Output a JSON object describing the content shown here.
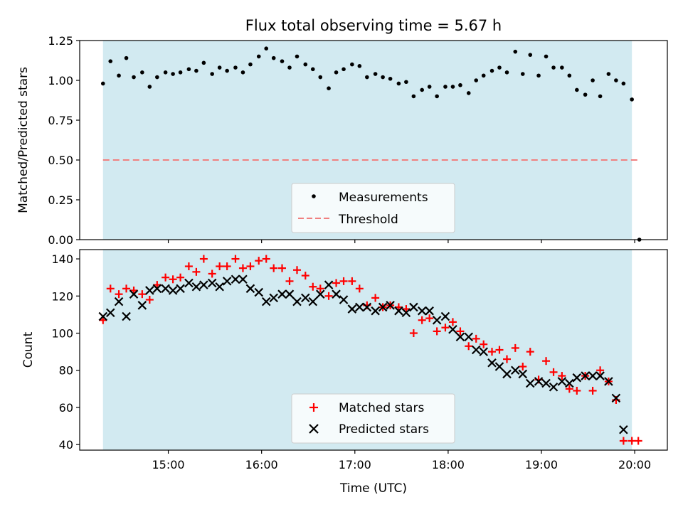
{
  "chart_data": {
    "title": "Flux total observing time = 5.67 h",
    "xlabel": "Time (UTC)",
    "x_unit": "hours UTC",
    "xlim": [
      14.05,
      20.35
    ],
    "xticks": [
      15,
      16,
      17,
      18,
      19,
      20
    ],
    "xtick_labels": [
      "15:00",
      "16:00",
      "17:00",
      "18:00",
      "19:00",
      "20:00"
    ],
    "observing_window": [
      14.3,
      19.97
    ],
    "window_color": "#add8e6",
    "panels": [
      {
        "type": "scatter",
        "ylabel": "Matched/Predicted stars",
        "ylim": [
          0,
          1.25
        ],
        "yticks": [
          0,
          0.25,
          0.5,
          0.75,
          1.0,
          1.25
        ],
        "ytick_labels": [
          "0.00",
          "0.25",
          "0.50",
          "0.75",
          "1.00",
          "1.25"
        ],
        "legend_position": "lower-center",
        "series": [
          {
            "name": "Measurements",
            "marker": "dot",
            "color": "#000000",
            "x": [
              14.3,
              14.38,
              14.47,
              14.55,
              14.63,
              14.72,
              14.8,
              14.88,
              14.97,
              15.05,
              15.13,
              15.22,
              15.3,
              15.38,
              15.47,
              15.55,
              15.63,
              15.72,
              15.8,
              15.88,
              15.97,
              16.05,
              16.13,
              16.22,
              16.3,
              16.38,
              16.47,
              16.55,
              16.63,
              16.72,
              16.8,
              16.88,
              16.97,
              17.05,
              17.13,
              17.22,
              17.3,
              17.38,
              17.47,
              17.55,
              17.63,
              17.72,
              17.8,
              17.88,
              17.97,
              18.05,
              18.13,
              18.22,
              18.3,
              18.38,
              18.47,
              18.55,
              18.63,
              18.72,
              18.8,
              18.88,
              18.97,
              19.05,
              19.13,
              19.22,
              19.3,
              19.38,
              19.47,
              19.55,
              19.63,
              19.72,
              19.8,
              19.88,
              19.97,
              20.05
            ],
            "y": [
              0.98,
              1.12,
              1.03,
              1.14,
              1.02,
              1.05,
              0.96,
              1.02,
              1.05,
              1.04,
              1.05,
              1.07,
              1.06,
              1.11,
              1.04,
              1.08,
              1.06,
              1.08,
              1.05,
              1.1,
              1.15,
              1.2,
              1.14,
              1.12,
              1.08,
              1.15,
              1.1,
              1.07,
              1.02,
              0.95,
              1.05,
              1.07,
              1.1,
              1.09,
              1.02,
              1.04,
              1.02,
              1.01,
              0.98,
              0.99,
              0.9,
              0.94,
              0.96,
              0.9,
              0.96,
              0.96,
              0.97,
              0.92,
              1.0,
              1.03,
              1.06,
              1.08,
              1.05,
              1.18,
              1.04,
              1.16,
              1.03,
              1.15,
              1.08,
              1.08,
              1.03,
              0.94,
              0.91,
              1.0,
              0.9,
              1.04,
              1.0,
              0.98,
              0.88,
              0.0
            ]
          },
          {
            "name": "Threshold",
            "marker": "dashed-line",
            "color": "#f08080",
            "x": [
              14.3,
              20.05
            ],
            "y": [
              0.5,
              0.5
            ]
          }
        ]
      },
      {
        "type": "scatter",
        "ylabel": "Count",
        "ylim": [
          37,
          145
        ],
        "yticks": [
          40,
          60,
          80,
          100,
          120,
          140
        ],
        "ytick_labels": [
          "40",
          "60",
          "80",
          "100",
          "120",
          "140"
        ],
        "legend_position": "lower-center",
        "series": [
          {
            "name": "Matched stars",
            "marker": "plus",
            "color": "#ff0000",
            "x": [
              14.3,
              14.38,
              14.47,
              14.55,
              14.63,
              14.72,
              14.8,
              14.88,
              14.97,
              15.05,
              15.13,
              15.22,
              15.3,
              15.38,
              15.47,
              15.55,
              15.63,
              15.72,
              15.8,
              15.88,
              15.97,
              16.05,
              16.13,
              16.22,
              16.3,
              16.38,
              16.47,
              16.55,
              16.63,
              16.72,
              16.8,
              16.88,
              16.97,
              17.05,
              17.13,
              17.22,
              17.3,
              17.38,
              17.47,
              17.55,
              17.63,
              17.72,
              17.8,
              17.88,
              17.97,
              18.05,
              18.13,
              18.22,
              18.3,
              18.38,
              18.47,
              18.55,
              18.63,
              18.72,
              18.8,
              18.88,
              18.97,
              19.05,
              19.13,
              19.22,
              19.3,
              19.38,
              19.47,
              19.55,
              19.63,
              19.72,
              19.8,
              19.88,
              19.97,
              20.05
            ],
            "y": [
              107,
              124,
              121,
              124,
              123,
              121,
              118,
              126,
              130,
              129,
              130,
              136,
              133,
              140,
              132,
              136,
              136,
              140,
              135,
              136,
              139,
              140,
              135,
              135,
              128,
              134,
              131,
              125,
              124,
              120,
              127,
              128,
              128,
              124,
              115,
              119,
              114,
              115,
              114,
              113,
              100,
              107,
              108,
              101,
              103,
              106,
              101,
              93,
              97,
              94,
              90,
              91,
              86,
              92,
              82,
              90,
              75,
              85,
              79,
              77,
              70,
              69,
              77,
              69,
              80,
              74,
              64,
              42,
              42,
              null
            ],
            "note_last_valid_index": 68
          },
          {
            "name": "Predicted stars",
            "marker": "x",
            "color": "#000000",
            "x": [
              14.3,
              14.38,
              14.47,
              14.55,
              14.63,
              14.72,
              14.8,
              14.88,
              14.97,
              15.05,
              15.13,
              15.22,
              15.3,
              15.38,
              15.47,
              15.55,
              15.63,
              15.72,
              15.8,
              15.88,
              15.97,
              16.05,
              16.13,
              16.22,
              16.3,
              16.38,
              16.47,
              16.55,
              16.63,
              16.72,
              16.8,
              16.88,
              16.97,
              17.05,
              17.13,
              17.22,
              17.3,
              17.38,
              17.47,
              17.55,
              17.63,
              17.72,
              17.8,
              17.88,
              17.97,
              18.05,
              18.13,
              18.22,
              18.3,
              18.38,
              18.47,
              18.55,
              18.63,
              18.72,
              18.8,
              18.88,
              18.97,
              19.05,
              19.13,
              19.22,
              19.3,
              19.38,
              19.47,
              19.55,
              19.63,
              19.72,
              19.8,
              19.88,
              19.97
            ],
            "y": [
              109,
              111,
              117,
              109,
              121,
              115,
              123,
              124,
              124,
              123,
              124,
              127,
              125,
              126,
              127,
              125,
              128,
              129,
              129,
              124,
              122,
              117,
              119,
              121,
              121,
              117,
              119,
              117,
              121,
              126,
              121,
              118,
              113,
              114,
              114,
              112,
              114,
              115,
              112,
              111,
              114,
              112,
              112,
              107,
              109,
              102,
              98,
              98,
              91,
              90,
              84,
              82,
              78,
              80,
              78,
              73,
              74,
              73,
              71,
              74,
              73,
              76,
              77,
              77,
              77,
              74,
              65,
              48,
              null
            ]
          }
        ]
      }
    ]
  }
}
